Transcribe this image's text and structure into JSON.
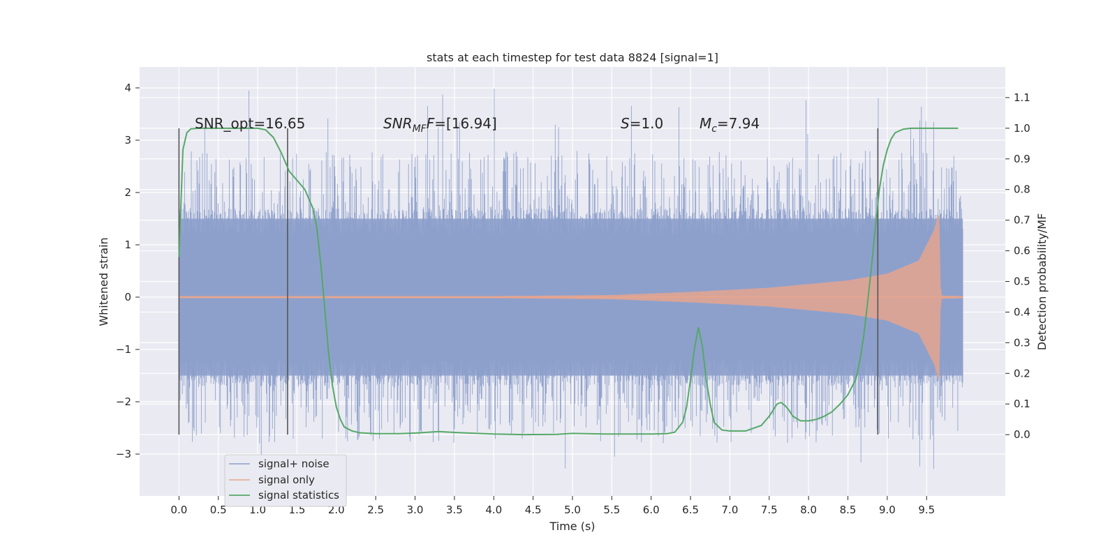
{
  "chart_data": {
    "type": "line",
    "title": "stats at each timestep for test data 8824 [signal=1]",
    "xlabel": "Time (s)",
    "ylabel_left": "Whitened strain",
    "ylabel_right": "Detection probability/MF",
    "xlim": [
      -0.5,
      10.5
    ],
    "ylim_left": [
      -3.8,
      4.4
    ],
    "ylim_right": [
      -0.2,
      1.2
    ],
    "x_ticks": [
      "0.0",
      "0.5",
      "1.0",
      "1.5",
      "2.0",
      "2.5",
      "3.0",
      "3.5",
      "4.0",
      "4.5",
      "5.0",
      "5.5",
      "6.0",
      "6.5",
      "7.0",
      "7.5",
      "8.0",
      "8.5",
      "9.0",
      "9.5"
    ],
    "y_ticks_left": [
      "−3",
      "−2",
      "−1",
      "0",
      "1",
      "2",
      "3",
      "4"
    ],
    "y_ticks_right": [
      "0.0",
      "0.1",
      "0.2",
      "0.3",
      "0.4",
      "0.5",
      "0.6",
      "0.7",
      "0.8",
      "0.9",
      "1.0",
      "1.1"
    ],
    "grid": true,
    "legend_position": "lower-left",
    "annotations": {
      "snr_opt": "SNR_opt=16.65",
      "snr_mf_label": "SNR",
      "snr_mf_sub": "MF",
      "snr_mf_value": "=[16.94]",
      "s_label": "S",
      "s_value": "=1.0",
      "mc_label": "M",
      "mc_sub": "c",
      "mc_value": "=7.94"
    },
    "vertical_markers_x": [
      0.0,
      1.38,
      8.88
    ],
    "series": [
      {
        "name": "signal+ noise",
        "color": "#8da0cb",
        "axis": "left",
        "x_range": [
          0.0,
          9.96
        ],
        "approx_band": [
          -1.5,
          1.5
        ],
        "approx_extremes": [
          -3.4,
          4.05
        ]
      },
      {
        "name": "signal only",
        "color": "#e5a58f",
        "axis": "left",
        "x_range": [
          0.0,
          9.96
        ],
        "amplitude_points": [
          [
            0.0,
            0.02
          ],
          [
            4.0,
            0.02
          ],
          [
            5.5,
            0.04
          ],
          [
            6.5,
            0.1
          ],
          [
            7.5,
            0.18
          ],
          [
            8.5,
            0.32
          ],
          [
            9.0,
            0.45
          ],
          [
            9.4,
            0.7
          ],
          [
            9.6,
            1.3
          ],
          [
            9.66,
            1.65
          ],
          [
            9.68,
            0.03
          ],
          [
            9.96,
            0.02
          ]
        ]
      },
      {
        "name": "signal statistics",
        "color": "#55a868",
        "axis": "right",
        "x": [
          0.0,
          0.05,
          0.1,
          0.15,
          0.25,
          0.4,
          0.6,
          0.8,
          1.0,
          1.1,
          1.2,
          1.3,
          1.4,
          1.5,
          1.6,
          1.7,
          1.75,
          1.8,
          1.85,
          1.9,
          1.95,
          2.0,
          2.05,
          2.1,
          2.2,
          2.3,
          2.5,
          2.8,
          3.0,
          3.3,
          3.6,
          4.0,
          4.4,
          4.8,
          5.0,
          5.4,
          5.8,
          6.0,
          6.2,
          6.3,
          6.4,
          6.45,
          6.5,
          6.55,
          6.6,
          6.65,
          6.7,
          6.75,
          6.8,
          6.9,
          7.0,
          7.2,
          7.4,
          7.5,
          7.6,
          7.65,
          7.7,
          7.75,
          7.8,
          7.9,
          8.0,
          8.1,
          8.2,
          8.3,
          8.4,
          8.5,
          8.6,
          8.65,
          8.7,
          8.75,
          8.8,
          8.85,
          8.9,
          8.95,
          9.0,
          9.05,
          9.1,
          9.2,
          9.3,
          9.5,
          9.7,
          9.9
        ],
        "values": [
          0.58,
          0.93,
          0.985,
          0.998,
          1.0,
          1.0,
          1.0,
          1.0,
          1.0,
          0.995,
          0.97,
          0.92,
          0.86,
          0.83,
          0.8,
          0.74,
          0.68,
          0.56,
          0.42,
          0.27,
          0.16,
          0.09,
          0.05,
          0.025,
          0.012,
          0.006,
          0.003,
          0.003,
          0.005,
          0.01,
          0.006,
          0.002,
          0.0,
          0.001,
          0.004,
          0.002,
          0.002,
          0.002,
          0.003,
          0.008,
          0.04,
          0.09,
          0.18,
          0.28,
          0.35,
          0.29,
          0.18,
          0.1,
          0.04,
          0.015,
          0.012,
          0.012,
          0.03,
          0.06,
          0.1,
          0.105,
          0.095,
          0.08,
          0.06,
          0.045,
          0.045,
          0.05,
          0.06,
          0.075,
          0.1,
          0.13,
          0.18,
          0.24,
          0.32,
          0.43,
          0.55,
          0.68,
          0.8,
          0.88,
          0.93,
          0.965,
          0.985,
          0.997,
          1.0,
          1.0,
          1.0,
          1.0
        ]
      }
    ]
  }
}
